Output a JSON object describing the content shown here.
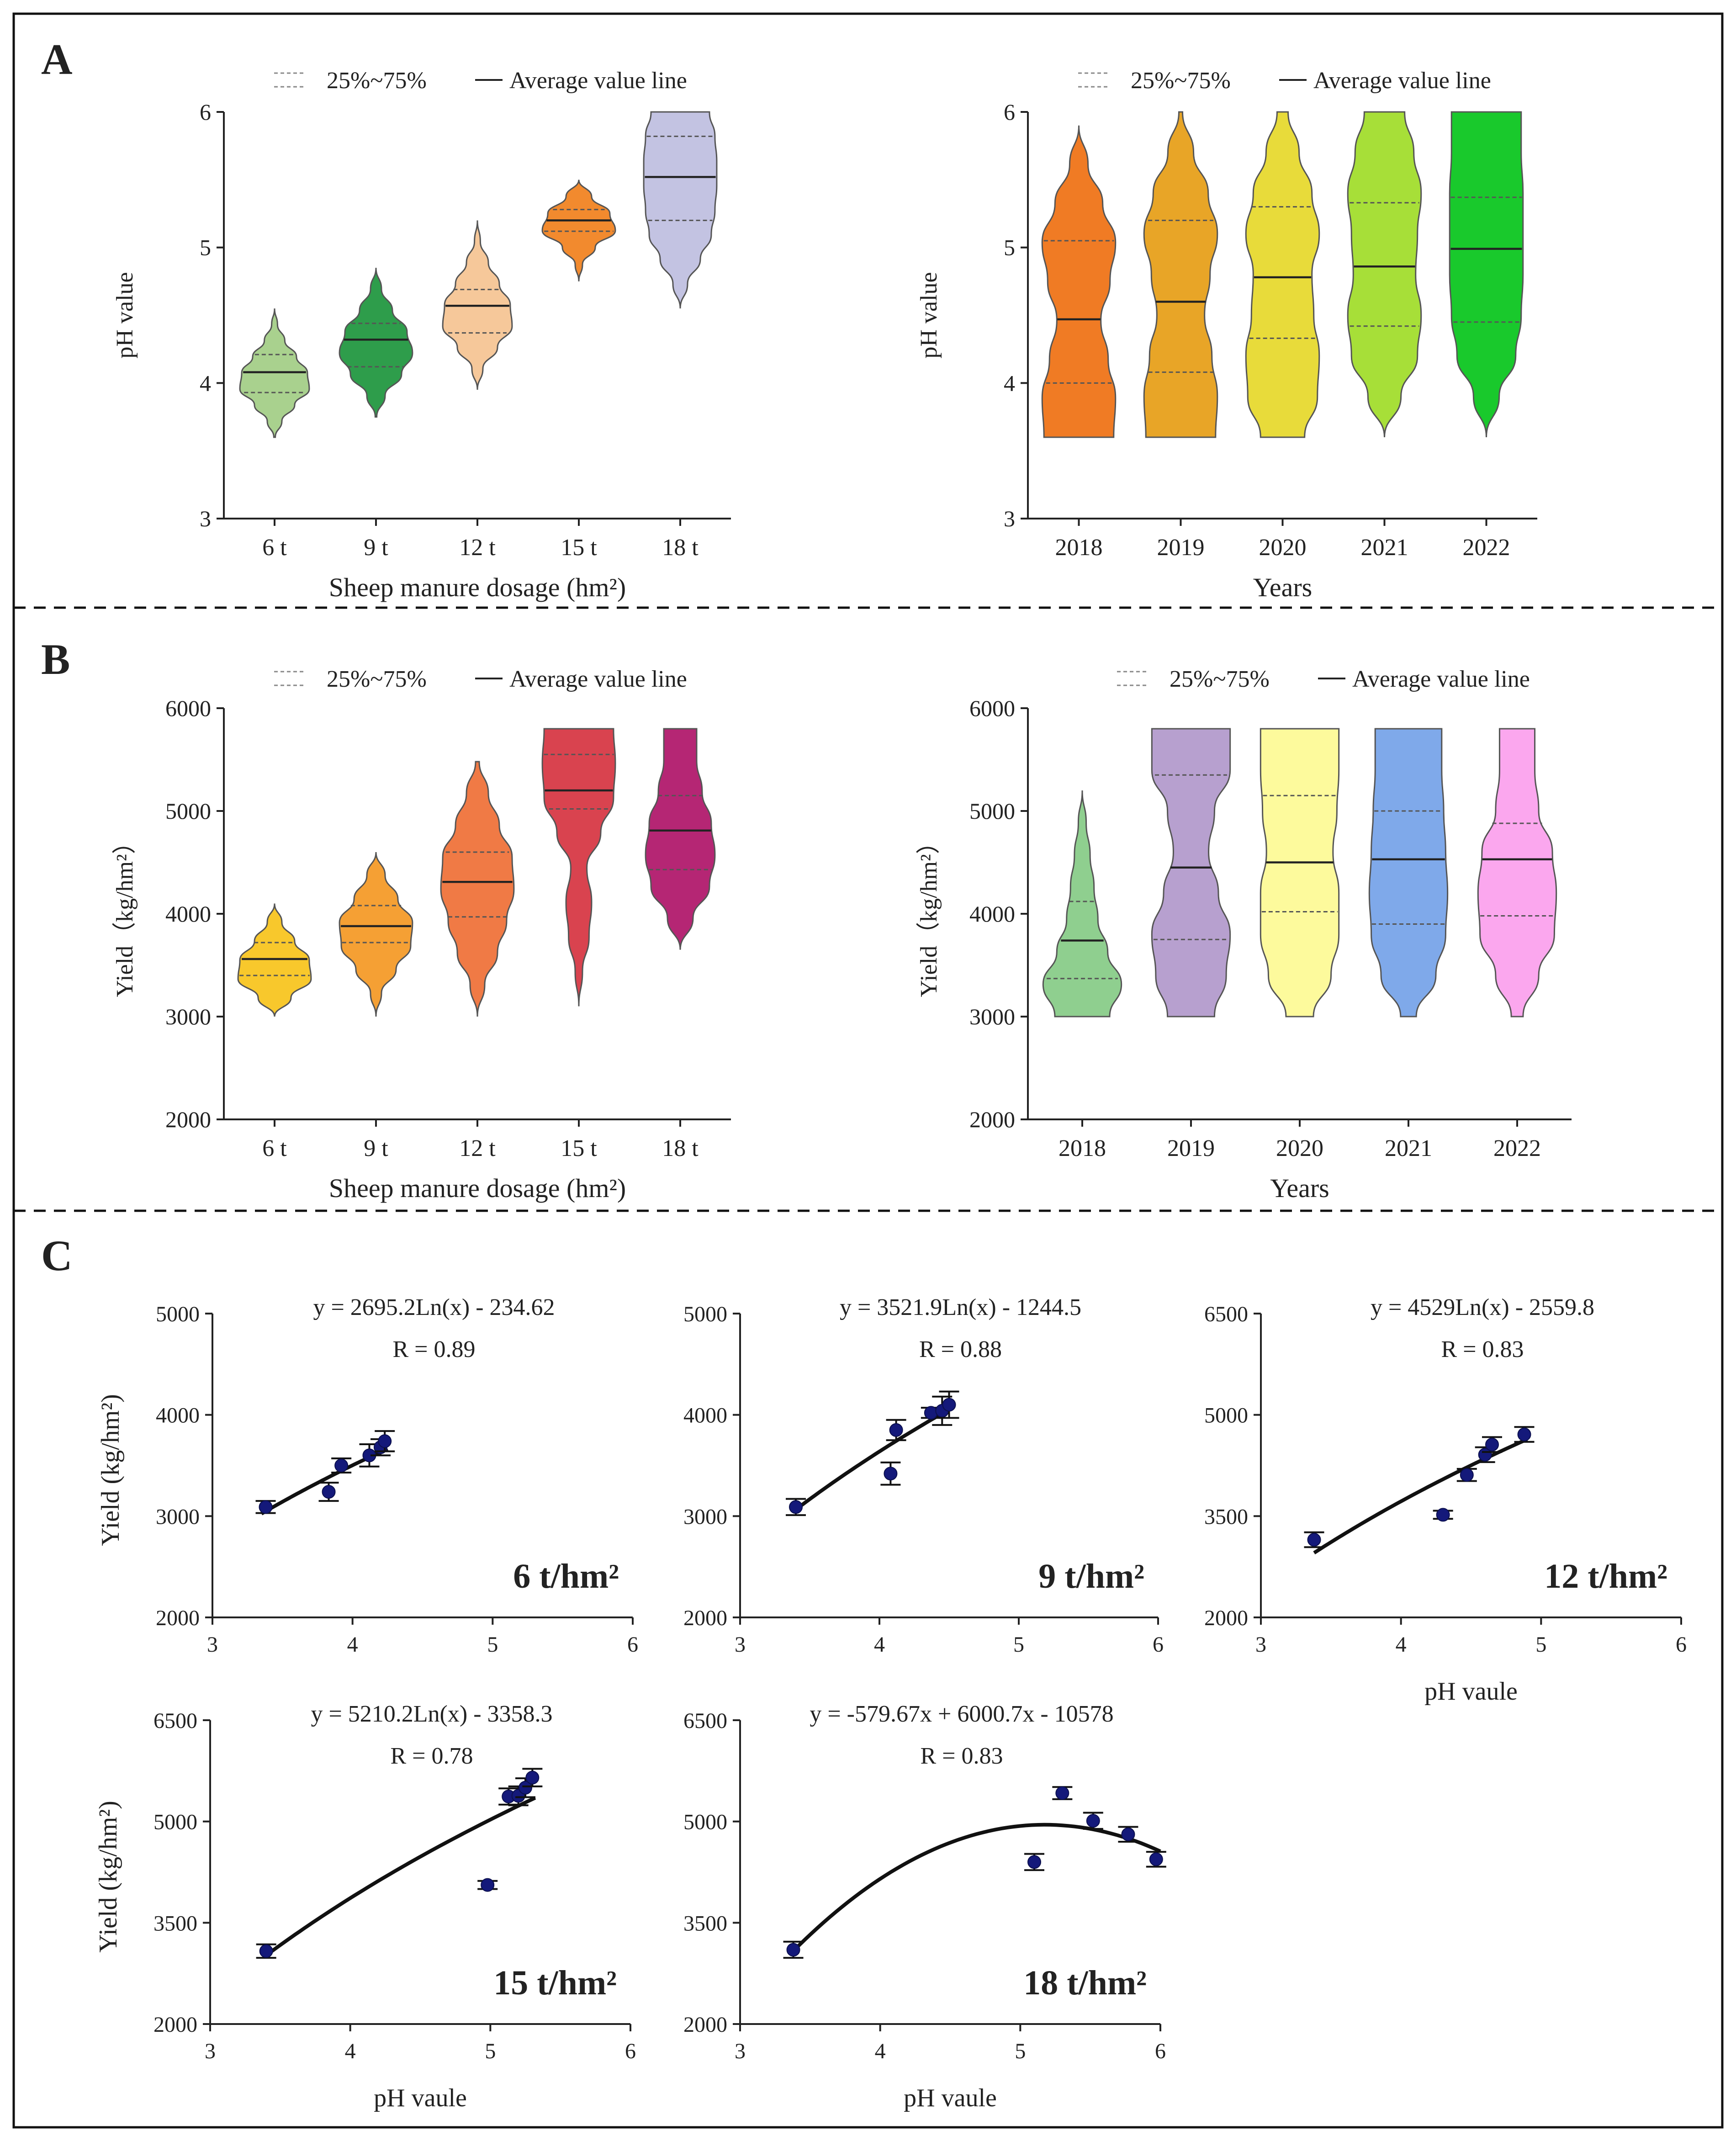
{
  "panels": [
    {
      "label": "A",
      "key": "A"
    },
    {
      "label": "B",
      "key": "B"
    },
    {
      "label": "C",
      "key": "C"
    }
  ],
  "chart_data": [
    {
      "id": "A_left",
      "type": "violin",
      "panel": "A",
      "legend": {
        "quartile_label": "25%~75%",
        "mean_label": "Average value line"
      },
      "xlabel": "Sheep manure dosage (hm²)",
      "ylabel": "pH value",
      "ylim": [
        3,
        6
      ],
      "yticks": [
        3,
        4,
        5,
        6
      ],
      "categories": [
        "6 t",
        "9 t",
        "12 t",
        "15 t",
        "18 t"
      ],
      "violins": [
        {
          "color": "#a9d18e",
          "min": 3.6,
          "max": 4.55,
          "q1": 3.93,
          "q3": 4.21,
          "mean": 4.08,
          "widths": [
            0.02,
            0.2,
            0.55,
            0.95,
            0.9,
            0.6,
            0.28,
            0.08,
            0.0
          ]
        },
        {
          "color": "#2e9d4b",
          "min": 3.75,
          "max": 4.85,
          "q1": 4.12,
          "q3": 4.44,
          "mean": 4.32,
          "widths": [
            0.02,
            0.25,
            0.7,
            1.0,
            0.85,
            0.45,
            0.15,
            0.0
          ]
        },
        {
          "color": "#f6c89a",
          "min": 3.95,
          "max": 5.2,
          "q1": 4.37,
          "q3": 4.69,
          "mean": 4.57,
          "widths": [
            0.0,
            0.15,
            0.55,
            0.95,
            0.9,
            0.6,
            0.3,
            0.08,
            0.0
          ]
        },
        {
          "color": "#f28a2e",
          "min": 4.75,
          "max": 5.5,
          "q1": 5.12,
          "q3": 5.28,
          "mean": 5.2,
          "widths": [
            0.0,
            0.1,
            0.45,
            1.0,
            0.85,
            0.35,
            0.0
          ]
        },
        {
          "color": "#c3c3e2",
          "min": 4.55,
          "max": 6.0,
          "q1": 5.2,
          "q3": 5.82,
          "mean": 5.52,
          "widths": [
            0.0,
            0.2,
            0.55,
            0.85,
            0.95,
            1.0,
            1.0,
            0.95,
            0.8
          ]
        }
      ]
    },
    {
      "id": "A_right",
      "type": "violin",
      "panel": "A",
      "legend": {
        "quartile_label": "25%~75%",
        "mean_label": "Average value line"
      },
      "xlabel": "Years",
      "ylabel": "pH value",
      "ylim": [
        3,
        6
      ],
      "yticks": [
        3,
        4,
        5,
        6
      ],
      "categories": [
        "2018",
        "2019",
        "2020",
        "2021",
        "2022"
      ],
      "violins": [
        {
          "color": "#f07b24",
          "min": 3.6,
          "max": 5.9,
          "q1": 4.0,
          "q3": 5.05,
          "mean": 4.47,
          "widths": [
            0.95,
            1.0,
            0.8,
            0.6,
            0.85,
            1.0,
            0.65,
            0.25,
            0.0
          ]
        },
        {
          "color": "#e8a527",
          "min": 3.6,
          "max": 6.0,
          "q1": 4.08,
          "q3": 5.2,
          "mean": 4.6,
          "widths": [
            0.95,
            1.0,
            0.85,
            0.65,
            0.8,
            1.0,
            0.75,
            0.35,
            0.05
          ]
        },
        {
          "color": "#e8db3a",
          "min": 3.6,
          "max": 6.0,
          "q1": 4.33,
          "q3": 5.3,
          "mean": 4.78,
          "widths": [
            0.6,
            0.95,
            1.0,
            0.85,
            0.8,
            1.0,
            0.8,
            0.45,
            0.15
          ]
        },
        {
          "color": "#a7df38",
          "min": 3.6,
          "max": 6.0,
          "q1": 4.42,
          "q3": 5.33,
          "mean": 4.86,
          "widths": [
            0.0,
            0.45,
            0.9,
            1.0,
            0.85,
            0.9,
            1.0,
            0.8,
            0.55
          ]
        },
        {
          "color": "#19c92c",
          "min": 3.6,
          "max": 6.0,
          "q1": 4.45,
          "q3": 5.37,
          "mean": 4.99,
          "widths": [
            0.0,
            0.35,
            0.8,
            0.95,
            1.0,
            1.0,
            1.0,
            0.95,
            0.95
          ]
        }
      ]
    },
    {
      "id": "B_left",
      "type": "violin",
      "panel": "B",
      "legend": {
        "quartile_label": "25%~75%",
        "mean_label": "Average value line"
      },
      "xlabel": "Sheep manure dosage (hm²)",
      "ylabel": "Yield（kg/hm²）",
      "ylim": [
        2000,
        6000
      ],
      "yticks": [
        2000,
        3000,
        4000,
        5000,
        6000
      ],
      "categories": [
        "6 t",
        "9 t",
        "12 t",
        "15 t",
        "18 t"
      ],
      "violins": [
        {
          "color": "#f8c82c",
          "min": 3000,
          "max": 4100,
          "q1": 3400,
          "q3": 3720,
          "mean": 3560,
          "widths": [
            0.0,
            0.45,
            1.0,
            0.95,
            0.55,
            0.2,
            0.0
          ]
        },
        {
          "color": "#f5a034",
          "min": 3000,
          "max": 4600,
          "q1": 3720,
          "q3": 4080,
          "mean": 3880,
          "widths": [
            0.0,
            0.15,
            0.55,
            0.95,
            1.0,
            0.6,
            0.25,
            0.0
          ]
        },
        {
          "color": "#f07a45",
          "min": 3000,
          "max": 5480,
          "q1": 3970,
          "q3": 4600,
          "mean": 4310,
          "widths": [
            0.0,
            0.2,
            0.55,
            0.8,
            1.0,
            0.95,
            0.6,
            0.3,
            0.05
          ]
        },
        {
          "color": "#d9434f",
          "min": 3100,
          "max": 5800,
          "q1": 5020,
          "q3": 5550,
          "mean": 5200,
          "widths": [
            0.0,
            0.1,
            0.28,
            0.35,
            0.22,
            0.6,
            0.95,
            1.0,
            0.95
          ]
        },
        {
          "color": "#b52674",
          "min": 3650,
          "max": 5800,
          "q1": 4430,
          "q3": 5150,
          "mean": 4810,
          "widths": [
            0.0,
            0.35,
            0.8,
            0.95,
            0.85,
            0.6,
            0.45,
            0.45
          ]
        }
      ]
    },
    {
      "id": "B_right",
      "type": "violin",
      "panel": "B",
      "legend": {
        "quartile_label": "25%~75%",
        "mean_label": "Average value line"
      },
      "xlabel": "Years",
      "ylabel": "Yield（kg/hm²）",
      "ylim": [
        2000,
        6000
      ],
      "yticks": [
        2000,
        3000,
        4000,
        5000,
        6000
      ],
      "categories": [
        "2018",
        "2019",
        "2020",
        "2021",
        "2022"
      ],
      "violins": [
        {
          "color": "#8fcf8f",
          "min": 3000,
          "max": 5200,
          "q1": 3370,
          "q3": 4120,
          "mean": 3740,
          "widths": [
            0.7,
            1.0,
            0.65,
            0.4,
            0.3,
            0.2,
            0.1,
            0.0
          ]
        },
        {
          "color": "#b7a0cf",
          "min": 3000,
          "max": 5800,
          "q1": 3750,
          "q3": 5350,
          "mean": 4450,
          "widths": [
            0.6,
            0.9,
            1.0,
            0.7,
            0.45,
            0.6,
            1.0,
            1.0
          ]
        },
        {
          "color": "#fdfa9c",
          "min": 3000,
          "max": 5800,
          "q1": 4020,
          "q3": 5150,
          "mean": 4500,
          "widths": [
            0.35,
            0.8,
            1.0,
            1.0,
            0.85,
            0.95,
            1.0,
            1.0
          ]
        },
        {
          "color": "#7fa9ea",
          "min": 3000,
          "max": 5800,
          "q1": 3900,
          "q3": 5000,
          "mean": 4530,
          "widths": [
            0.2,
            0.7,
            0.95,
            1.0,
            0.95,
            0.9,
            0.85,
            0.85
          ]
        },
        {
          "color": "#fba7ee",
          "min": 3000,
          "max": 5800,
          "q1": 3980,
          "q3": 4880,
          "mean": 4530,
          "widths": [
            0.15,
            0.55,
            0.95,
            1.0,
            0.9,
            0.55,
            0.45,
            0.45
          ]
        }
      ]
    },
    {
      "id": "C_6t",
      "type": "scatter",
      "panel": "C",
      "label": "6 t/hm²",
      "equation": "y = 2695.2Ln(x) - 234.62",
      "r2": "R  = 0.89",
      "ylabel": "Yield (kg/hm²)",
      "xlabel": "",
      "xlim": [
        3,
        6
      ],
      "xticks": [
        3,
        4,
        5,
        6
      ],
      "ylim": [
        2000,
        5000
      ],
      "yticks": [
        2000,
        3000,
        4000,
        5000
      ],
      "fit": {
        "kind": "log",
        "a": 2695.2,
        "b": -234.62,
        "xrange": [
          3.35,
          4.25
        ]
      },
      "points": [
        {
          "x": 3.38,
          "y": 3090,
          "err": 60
        },
        {
          "x": 3.83,
          "y": 3240,
          "err": 90
        },
        {
          "x": 3.92,
          "y": 3500,
          "err": 70
        },
        {
          "x": 4.12,
          "y": 3600,
          "err": 110
        },
        {
          "x": 4.2,
          "y": 3680,
          "err": 80
        },
        {
          "x": 4.23,
          "y": 3740,
          "err": 100
        }
      ]
    },
    {
      "id": "C_9t",
      "type": "scatter",
      "panel": "C",
      "label": "9 t/hm²",
      "equation": "y = 3521.9Ln(x) - 1244.5",
      "r2": "R  = 0.88",
      "ylabel": "",
      "xlabel": "",
      "xlim": [
        3,
        6
      ],
      "xticks": [
        3,
        4,
        5,
        6
      ],
      "ylim": [
        2000,
        5000
      ],
      "yticks": [
        2000,
        3000,
        4000,
        5000
      ],
      "fit": {
        "kind": "log",
        "a": 3521.9,
        "b": -1244.5,
        "xrange": [
          3.38,
          4.52
        ]
      },
      "points": [
        {
          "x": 3.4,
          "y": 3090,
          "err": 80
        },
        {
          "x": 4.08,
          "y": 3420,
          "err": 110
        },
        {
          "x": 4.12,
          "y": 3850,
          "err": 100
        },
        {
          "x": 4.37,
          "y": 4020,
          "err": 50
        },
        {
          "x": 4.45,
          "y": 4040,
          "err": 140
        },
        {
          "x": 4.5,
          "y": 4100,
          "err": 130
        }
      ]
    },
    {
      "id": "C_12t",
      "type": "scatter",
      "panel": "C",
      "label": "12 t/hm²",
      "equation": "y = 4529Ln(x) - 2559.8",
      "r2": "R  = 0.83",
      "ylabel": "",
      "xlabel": "pH vaule",
      "xlim": [
        3,
        6
      ],
      "xticks": [
        3,
        4,
        5,
        6
      ],
      "ylim": [
        2000,
        6500
      ],
      "yticks": [
        2000,
        3500,
        5000,
        6500
      ],
      "fit": {
        "kind": "log",
        "a": 4529,
        "b": -2559.8,
        "xrange": [
          3.38,
          4.9
        ]
      },
      "points": [
        {
          "x": 3.38,
          "y": 3150,
          "err": 110
        },
        {
          "x": 4.3,
          "y": 3520,
          "err": 60
        },
        {
          "x": 4.47,
          "y": 4110,
          "err": 90
        },
        {
          "x": 4.6,
          "y": 4410,
          "err": 110
        },
        {
          "x": 4.65,
          "y": 4560,
          "err": 110
        },
        {
          "x": 4.88,
          "y": 4710,
          "err": 110
        }
      ]
    },
    {
      "id": "C_15t",
      "type": "scatter",
      "panel": "C",
      "label": "15 t/hm²",
      "equation": "y = 5210.2Ln(x) - 3358.3",
      "r2": "R  = 0.78",
      "ylabel": "Yield (kg/hm²)",
      "xlabel": "pH vaule",
      "xlim": [
        3,
        6
      ],
      "xticks": [
        3,
        4,
        5,
        6
      ],
      "ylim": [
        2000,
        6500
      ],
      "yticks": [
        2000,
        3500,
        5000,
        6500
      ],
      "fit": {
        "kind": "log",
        "a": 5210.2,
        "b": -3358.3,
        "xrange": [
          3.38,
          5.32
        ]
      },
      "points": [
        {
          "x": 3.4,
          "y": 3080,
          "err": 100
        },
        {
          "x": 4.98,
          "y": 4060,
          "err": 60
        },
        {
          "x": 5.13,
          "y": 5370,
          "err": 120
        },
        {
          "x": 5.2,
          "y": 5380,
          "err": 140
        },
        {
          "x": 5.25,
          "y": 5500,
          "err": 140
        },
        {
          "x": 5.3,
          "y": 5650,
          "err": 130
        }
      ]
    },
    {
      "id": "C_18t",
      "type": "scatter",
      "panel": "C",
      "label": "18 t/hm²",
      "equation": "y = -579.67x  + 6000.7x - 10578",
      "r2": "R  = 0.83",
      "ylabel": "",
      "xlabel": "pH vaule",
      "xlim": [
        3,
        6
      ],
      "xticks": [
        3,
        4,
        5,
        6
      ],
      "ylim": [
        2000,
        6500
      ],
      "yticks": [
        2000,
        3500,
        5000,
        6500
      ],
      "fit": {
        "kind": "poly2",
        "a": -579.67,
        "b": 6000.7,
        "c": -10578,
        "xrange": [
          3.38,
          6.0
        ]
      },
      "points": [
        {
          "x": 3.38,
          "y": 3100,
          "err": 120
        },
        {
          "x": 5.1,
          "y": 4400,
          "err": 120
        },
        {
          "x": 5.3,
          "y": 5420,
          "err": 90
        },
        {
          "x": 5.52,
          "y": 5010,
          "err": 120
        },
        {
          "x": 5.77,
          "y": 4810,
          "err": 110
        },
        {
          "x": 5.97,
          "y": 4440,
          "err": 110
        }
      ]
    }
  ]
}
